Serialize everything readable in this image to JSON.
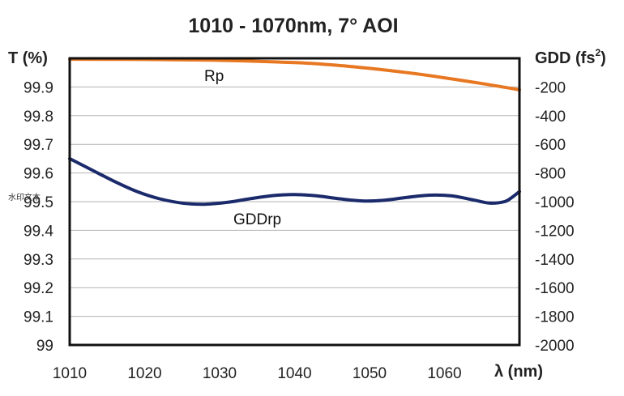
{
  "chart_data": {
    "type": "line",
    "title": "1010 - 1070nm, 7° AOI",
    "xlabel": "λ (nm)",
    "ylabel_left": "T (%)",
    "ylabel_right_base": "GDD (fs",
    "ylabel_right_sup": "2",
    "ylabel_right_end": ")",
    "xlim": [
      1010,
      1070
    ],
    "ylim_left": [
      99,
      100
    ],
    "ylim_right": [
      -2000,
      0
    ],
    "x_ticks": [
      "1010",
      "1020",
      "1030",
      "1040",
      "1050",
      "1060"
    ],
    "y_ticks_left": [
      "99.9",
      "99.8",
      "99.7",
      "99.6",
      "99.5",
      "99.4",
      "99.3",
      "99.2",
      "99.1",
      "99"
    ],
    "y_ticks_right": [
      "-200",
      "-400",
      "-600",
      "-800",
      "-1000",
      "-1200",
      "-1400",
      "-1600",
      "-1800",
      "-2000"
    ],
    "grid": true,
    "series": [
      {
        "name": "Rp",
        "axis": "left",
        "color": "#E87722",
        "x": [
          1010,
          1020,
          1030,
          1040,
          1045,
          1050,
          1055,
          1060,
          1065,
          1070
        ],
        "y": [
          99.997,
          99.996,
          99.993,
          99.985,
          99.977,
          99.965,
          99.95,
          99.932,
          99.912,
          99.89
        ]
      },
      {
        "name": "GDDrp",
        "axis": "right",
        "color": "#1B2A6B",
        "x": [
          1010,
          1013,
          1016,
          1019,
          1022,
          1025,
          1028,
          1031,
          1034,
          1037,
          1040,
          1043,
          1046,
          1049,
          1052,
          1055,
          1058,
          1061,
          1064,
          1066,
          1068,
          1069,
          1070
        ],
        "y": [
          -700,
          -780,
          -860,
          -930,
          -980,
          -1010,
          -1018,
          -1005,
          -980,
          -958,
          -950,
          -960,
          -980,
          -995,
          -990,
          -970,
          -955,
          -960,
          -990,
          -1010,
          -1000,
          -970,
          -930
        ]
      }
    ]
  },
  "watermark": "水印文本"
}
